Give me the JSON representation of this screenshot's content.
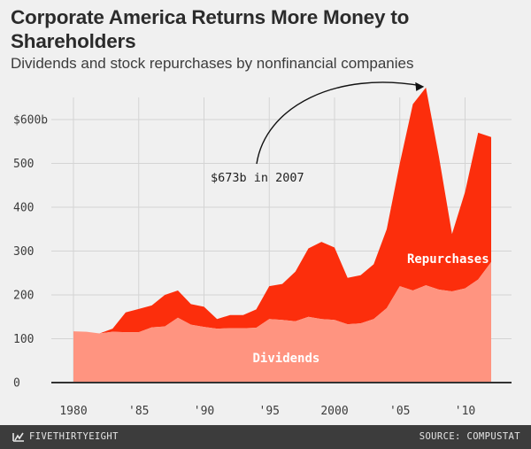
{
  "header": {
    "title": "Corporate America Returns More Money to Shareholders",
    "subtitle": "Dividends and stock repurchases by nonfinancial companies"
  },
  "footer": {
    "brand": "FIVETHIRTYEIGHT",
    "source": "SOURCE: COMPUSTAT"
  },
  "colors": {
    "background": "#f0f0f0",
    "dividends": "#ff9480",
    "repurchases": "#fc2e0c",
    "grid": "#d4d4d4",
    "footer": "#3c3c3c"
  },
  "chart_data": {
    "type": "area",
    "stacked": true,
    "title": "Corporate America Returns More Money to Shareholders",
    "subtitle": "Dividends and stock repurchases by nonfinancial companies",
    "x": [
      1980,
      1981,
      1982,
      1983,
      1984,
      1985,
      1986,
      1987,
      1988,
      1989,
      1990,
      1991,
      1992,
      1993,
      1994,
      1995,
      1996,
      1997,
      1998,
      1999,
      2000,
      2001,
      2002,
      2003,
      2004,
      2005,
      2006,
      2007,
      2008,
      2009,
      2010,
      2011,
      2012
    ],
    "series": [
      {
        "name": "Dividends",
        "label": "Dividends",
        "values": [
          117,
          116,
          112,
          116,
          115,
          115,
          126,
          128,
          148,
          132,
          127,
          123,
          124,
          124,
          125,
          145,
          143,
          140,
          150,
          145,
          143,
          133,
          135,
          145,
          170,
          220,
          210,
          222,
          212,
          208,
          215,
          235,
          275
        ]
      },
      {
        "name": "Repurchases",
        "label": "Repurchases",
        "values": [
          0,
          0,
          0,
          7,
          45,
          53,
          50,
          72,
          62,
          47,
          46,
          22,
          30,
          30,
          42,
          75,
          82,
          113,
          156,
          176,
          165,
          106,
          110,
          125,
          180,
          280,
          425,
          451,
          303,
          131,
          220,
          335,
          285
        ]
      }
    ],
    "annotation": {
      "text": "$673b in 2007",
      "x": 2007,
      "y": 673
    },
    "xticks": [
      1980,
      1985,
      1990,
      1995,
      2000,
      2005,
      2010
    ],
    "xtick_labels": [
      "1980",
      "'85",
      "'90",
      "'95",
      "2000",
      "'05",
      "'10"
    ],
    "yticks": [
      0,
      100,
      200,
      300,
      400,
      500,
      600
    ],
    "ytick_labels": [
      "0",
      "100",
      "200",
      "300",
      "400",
      "500",
      "$600b"
    ],
    "xlim": [
      1980,
      2013
    ],
    "ylim": [
      0,
      700
    ],
    "grid": true,
    "xlabel": "",
    "ylabel": ""
  }
}
